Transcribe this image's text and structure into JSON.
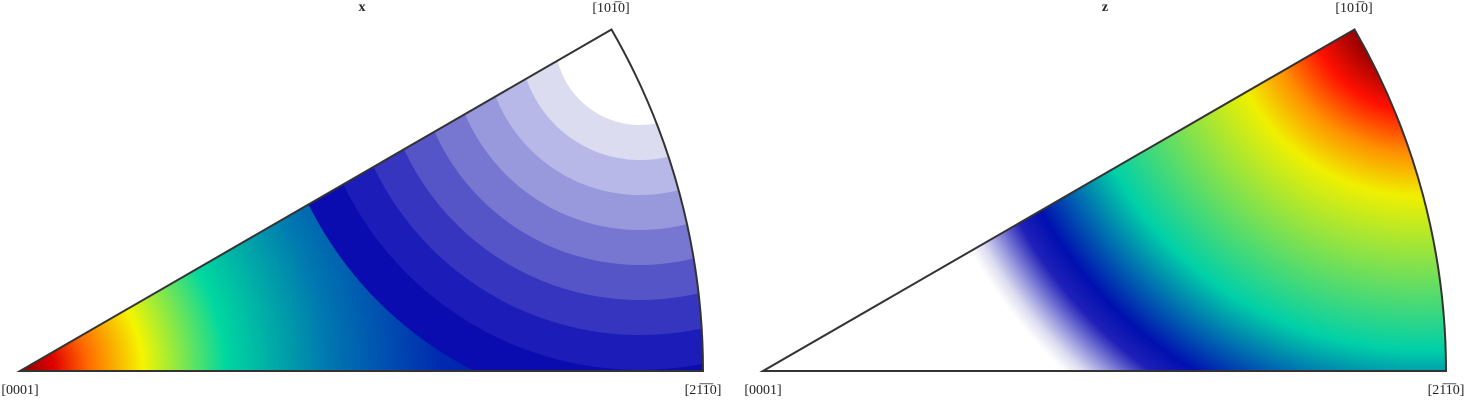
{
  "chart_data": [
    {
      "type": "ipf",
      "title": "x",
      "corner_labels": [
        "[0001]",
        "[21̅1̅0]",
        "[101̅0]"
      ]
    },
    {
      "type": "ipf",
      "title": "z",
      "corner_labels": [
        "[0001]",
        "[21̅1̅0]",
        "[101̅0]"
      ]
    }
  ]
}
